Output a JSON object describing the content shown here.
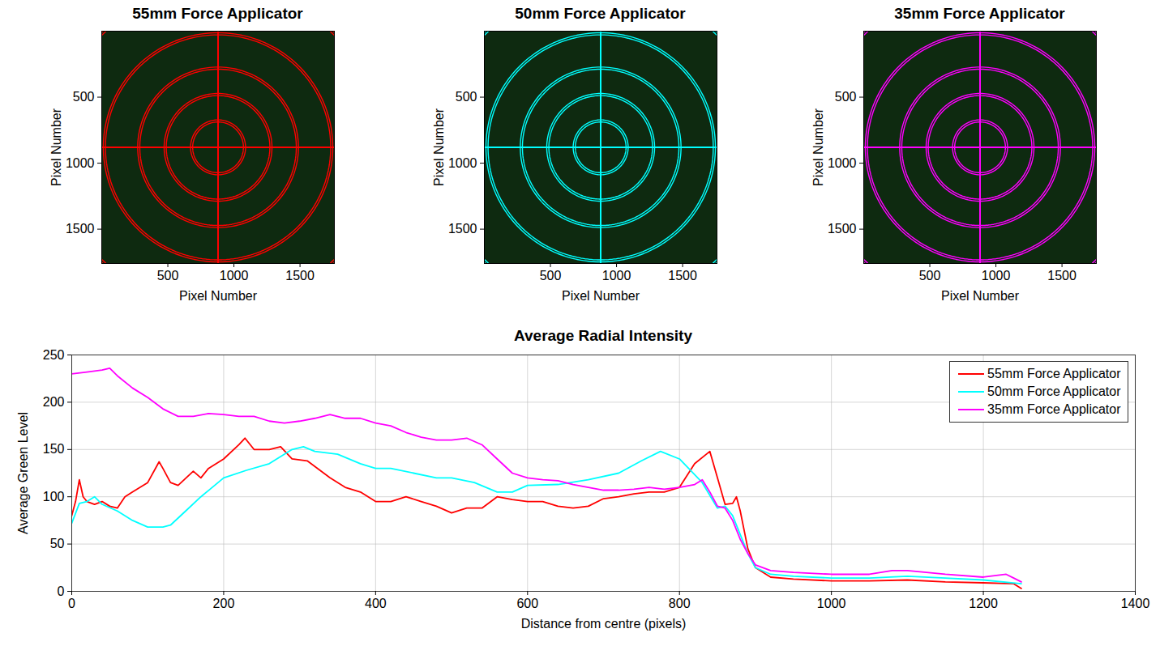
{
  "chart_data": [
    {
      "type": "image",
      "title": "55mm Force Applicator",
      "x_label": "Pixel Number",
      "y_label": "Pixel Number",
      "xlim": [
        0,
        1760
      ],
      "ylim": [
        1760,
        0
      ],
      "xticks": [
        500,
        1000,
        1500
      ],
      "yticks": [
        500,
        1000,
        1500
      ],
      "center": [
        880,
        880
      ],
      "ring_radii": [
        200,
        400,
        600,
        860,
        1230
      ],
      "color": "#ff0000"
    },
    {
      "type": "image",
      "title": "50mm Force Applicator",
      "x_label": "Pixel Number",
      "y_label": "Pixel Number",
      "xlim": [
        0,
        1760
      ],
      "ylim": [
        1760,
        0
      ],
      "xticks": [
        500,
        1000,
        1500
      ],
      "yticks": [
        500,
        1000,
        1500
      ],
      "center": [
        880,
        880
      ],
      "ring_radii": [
        200,
        400,
        600,
        860,
        1230
      ],
      "color": "#00ffff"
    },
    {
      "type": "image",
      "title": "35mm Force Applicator",
      "x_label": "Pixel Number",
      "y_label": "Pixel Number",
      "xlim": [
        0,
        1760
      ],
      "ylim": [
        1760,
        0
      ],
      "xticks": [
        500,
        1000,
        1500
      ],
      "yticks": [
        500,
        1000,
        1500
      ],
      "center": [
        880,
        880
      ],
      "ring_radii": [
        200,
        400,
        600,
        860,
        1230
      ],
      "color": "#ff00ff"
    },
    {
      "type": "line",
      "title": "Average Radial Intensity",
      "x_label": "Distance from centre (pixels)",
      "y_label": "Average Green Level",
      "xlim": [
        0,
        1400
      ],
      "xticks": [
        0,
        200,
        400,
        600,
        800,
        1000,
        1200,
        1400
      ],
      "ylim": [
        0,
        250
      ],
      "yticks": [
        0,
        50,
        100,
        150,
        200,
        250
      ],
      "grid": true,
      "legend": "top-right",
      "series": [
        {
          "name": "55mm Force Applicator",
          "color": "#ff0000",
          "x": [
            0,
            5,
            10,
            15,
            20,
            30,
            40,
            50,
            60,
            70,
            80,
            100,
            115,
            120,
            130,
            140,
            160,
            170,
            180,
            200,
            220,
            228,
            240,
            260,
            275,
            290,
            310,
            340,
            360,
            380,
            400,
            420,
            440,
            460,
            480,
            500,
            520,
            540,
            560,
            580,
            600,
            620,
            640,
            660,
            680,
            700,
            720,
            740,
            760,
            780,
            800,
            820,
            840,
            850,
            860,
            870,
            875,
            880,
            890,
            900,
            920,
            950,
            1000,
            1050,
            1100,
            1150,
            1200,
            1240,
            1250
          ],
          "values": [
            80,
            95,
            118,
            100,
            95,
            92,
            95,
            90,
            88,
            100,
            105,
            115,
            137,
            130,
            115,
            112,
            127,
            120,
            130,
            140,
            155,
            162,
            150,
            150,
            153,
            140,
            138,
            120,
            110,
            105,
            95,
            95,
            100,
            95,
            90,
            83,
            88,
            88,
            100,
            97,
            95,
            95,
            90,
            88,
            90,
            98,
            100,
            103,
            105,
            105,
            110,
            135,
            148,
            120,
            92,
            93,
            100,
            85,
            45,
            25,
            15,
            13,
            11,
            11,
            12,
            10,
            9,
            8,
            3
          ]
        },
        {
          "name": "50mm Force Applicator",
          "color": "#00ffff",
          "x": [
            0,
            10,
            20,
            30,
            40,
            60,
            80,
            100,
            120,
            130,
            150,
            170,
            200,
            230,
            260,
            290,
            305,
            320,
            350,
            380,
            400,
            420,
            450,
            480,
            500,
            530,
            560,
            580,
            600,
            640,
            680,
            720,
            750,
            775,
            800,
            830,
            850,
            860,
            870,
            880,
            890,
            900,
            920,
            950,
            1000,
            1050,
            1100,
            1150,
            1200,
            1250
          ],
          "values": [
            72,
            93,
            95,
            100,
            92,
            85,
            75,
            68,
            68,
            70,
            85,
            100,
            120,
            128,
            135,
            150,
            153,
            148,
            145,
            135,
            130,
            130,
            125,
            120,
            120,
            115,
            105,
            105,
            112,
            113,
            118,
            125,
            138,
            148,
            140,
            115,
            88,
            90,
            80,
            60,
            40,
            25,
            18,
            16,
            14,
            14,
            16,
            14,
            12,
            8
          ]
        },
        {
          "name": "35mm Force Applicator",
          "color": "#ff00ff",
          "x": [
            0,
            20,
            40,
            50,
            60,
            80,
            100,
            120,
            140,
            160,
            180,
            200,
            220,
            240,
            260,
            280,
            300,
            320,
            340,
            360,
            380,
            400,
            420,
            440,
            460,
            480,
            500,
            520,
            540,
            560,
            580,
            600,
            620,
            640,
            660,
            680,
            700,
            720,
            740,
            760,
            780,
            800,
            820,
            830,
            840,
            850,
            860,
            870,
            880,
            890,
            900,
            920,
            950,
            1000,
            1050,
            1080,
            1100,
            1150,
            1200,
            1230,
            1240,
            1250
          ],
          "values": [
            230,
            232,
            234,
            236,
            228,
            215,
            205,
            193,
            185,
            185,
            188,
            187,
            185,
            185,
            180,
            178,
            180,
            183,
            187,
            183,
            183,
            178,
            175,
            168,
            163,
            160,
            160,
            162,
            155,
            140,
            125,
            120,
            118,
            117,
            113,
            110,
            107,
            107,
            108,
            110,
            108,
            110,
            113,
            118,
            105,
            90,
            88,
            75,
            55,
            40,
            28,
            22,
            20,
            18,
            18,
            22,
            22,
            18,
            15,
            18,
            14,
            10
          ]
        }
      ]
    }
  ]
}
